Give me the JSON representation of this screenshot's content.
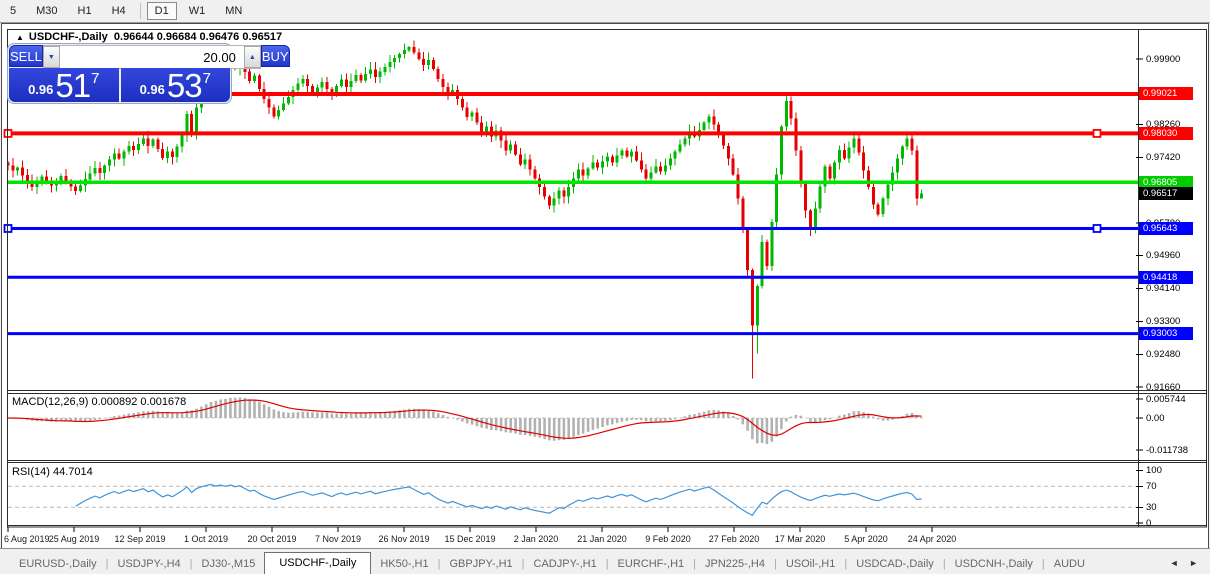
{
  "toolbar": {
    "timeframes": [
      "5",
      "M30",
      "H1",
      "H4",
      "D1",
      "W1",
      "MN"
    ],
    "active_timeframe": "D1"
  },
  "window": {
    "collapse_arrow": "▲",
    "symbol_title": "USDCHF-,Daily",
    "ohlc": "0.96644 0.96684 0.96476 0.96517"
  },
  "trade_panel": {
    "sell_label": "SELL",
    "buy_label": "BUY",
    "volume": "20.00",
    "sell_price_small": "0.96",
    "sell_price_big": "51",
    "sell_price_sup": "7",
    "buy_price_small": "0.96",
    "buy_price_big": "53",
    "buy_price_sup": "7",
    "spin_down": "▼",
    "spin_up": "▲"
  },
  "price_axis": {
    "plain_labels": [
      "0.99900",
      "0.98260",
      "0.97420",
      "0.95780",
      "0.94960",
      "0.94140",
      "0.93300",
      "0.92480",
      "0.91660"
    ],
    "badges": [
      {
        "value": "0.99021",
        "color": "#ff0000"
      },
      {
        "value": "0.98030",
        "color": "#ff0000"
      },
      {
        "value": "0.96805",
        "color": "#00cc00"
      },
      {
        "value": "0.96517",
        "color": "#000000"
      },
      {
        "value": "0.95643",
        "color": "#0000ff"
      },
      {
        "value": "0.94418",
        "color": "#0000ff"
      },
      {
        "value": "0.93003",
        "color": "#0000ff"
      }
    ]
  },
  "macd_panel": {
    "label": "MACD(12,26,9) 0.000892 0.001678",
    "axis": [
      "0.005744",
      "0.00",
      "-0.011738"
    ]
  },
  "rsi_panel": {
    "label": "RSI(14) 44.7014",
    "axis": [
      "100",
      "70",
      "30",
      "0"
    ]
  },
  "tabs": {
    "items": [
      "EURUSD-,Daily",
      "USDJPY-,H4",
      "DJ30-,M15",
      "USDCHF-,Daily",
      "HK50-,H1",
      "GBPJPY-,H1",
      "CADJPY-,H1",
      "EURCHF-,H1",
      "JPN225-,H4",
      "USOil-,H1",
      "USDCAD-,Daily",
      "USDCNH-,Daily",
      "AUDU"
    ],
    "active": "USDCHF-,Daily",
    "scroll_arrows": "◄ ►"
  },
  "chart_data": {
    "type": "candlestick",
    "title": "USDCHF-,Daily",
    "current_ohlc": {
      "open": 0.96644,
      "high": 0.96684,
      "low": 0.96476,
      "close": 0.96517
    },
    "current_price": 0.96517,
    "visible_price_range": [
      0.9166,
      1.003
    ],
    "x_dates": [
      "6 Aug 2019",
      "25 Aug 2019",
      "12 Sep 2019",
      "1 Oct 2019",
      "20 Oct 2019",
      "7 Nov 2019",
      "26 Nov 2019",
      "15 Dec 2019",
      "2 Jan 2020",
      "21 Jan 2020",
      "9 Feb 2020",
      "27 Feb 2020",
      "17 Mar 2020",
      "5 Apr 2020",
      "24 Apr 2020"
    ],
    "closes": [
      0.9722,
      0.971,
      0.9717,
      0.9698,
      0.968,
      0.9668,
      0.9681,
      0.9695,
      0.9684,
      0.9672,
      0.9684,
      0.9696,
      0.9683,
      0.967,
      0.9658,
      0.9672,
      0.9688,
      0.9702,
      0.9716,
      0.9704,
      0.9722,
      0.9738,
      0.9752,
      0.974,
      0.9758,
      0.9772,
      0.9762,
      0.9776,
      0.979,
      0.9772,
      0.9788,
      0.9764,
      0.9742,
      0.9758,
      0.9744,
      0.977,
      0.98,
      0.9852,
      0.9806,
      0.9868,
      0.99,
      0.993,
      0.9952,
      0.9938,
      0.9962,
      0.995,
      0.998,
      0.9965,
      0.9982,
      0.9958,
      0.9935,
      0.9948,
      0.9915,
      0.989,
      0.9868,
      0.9846,
      0.9862,
      0.9878,
      0.9895,
      0.9912,
      0.9928,
      0.994,
      0.9922,
      0.9905,
      0.9918,
      0.9932,
      0.9915,
      0.9898,
      0.9922,
      0.9938,
      0.992,
      0.9935,
      0.995,
      0.9936,
      0.9952,
      0.9964,
      0.9945,
      0.9958,
      0.997,
      0.9982,
      0.9992,
      1.0002,
      1.0012,
      1.002,
      1.0006,
      0.999,
      0.9975,
      0.9988,
      0.9965,
      0.994,
      0.992,
      0.99,
      0.9912,
      0.989,
      0.9868,
      0.9845,
      0.9855,
      0.983,
      0.9808,
      0.982,
      0.9795,
      0.981,
      0.9785,
      0.976,
      0.9775,
      0.975,
      0.9725,
      0.9738,
      0.9712,
      0.969,
      0.9668,
      0.9645,
      0.9622,
      0.964,
      0.966,
      0.9645,
      0.9668,
      0.969,
      0.9712,
      0.9698,
      0.9715,
      0.973,
      0.9718,
      0.9732,
      0.9745,
      0.973,
      0.9748,
      0.976,
      0.9745,
      0.9758,
      0.9735,
      0.9712,
      0.969,
      0.9705,
      0.972,
      0.9708,
      0.9722,
      0.974,
      0.9758,
      0.9775,
      0.979,
      0.9808,
      0.9795,
      0.9812,
      0.983,
      0.9845,
      0.9825,
      0.98,
      0.9772,
      0.974,
      0.97,
      0.964,
      0.956,
      0.946,
      0.932,
      0.942,
      0.953,
      0.947,
      0.958,
      0.97,
      0.982,
      0.9885,
      0.984,
      0.976,
      0.968,
      0.961,
      0.956,
      0.9615,
      0.967,
      0.972,
      0.969,
      0.973,
      0.9762,
      0.974,
      0.9768,
      0.979,
      0.9755,
      0.971,
      0.9668,
      0.9625,
      0.96,
      0.964,
      0.9675,
      0.9705,
      0.974,
      0.977,
      0.979,
      0.976,
      0.964,
      0.96517
    ],
    "wick_overrides": {
      "5": {
        "low": 0.9659
      },
      "14": {
        "low": 0.9648
      },
      "37": {
        "high": 0.986
      },
      "83": {
        "high": 1.0023
      },
      "112": {
        "low": 0.9613
      },
      "145": {
        "high": 0.9852
      },
      "154": {
        "low": 0.9187
      },
      "155": {
        "low": 0.925
      },
      "161": {
        "high": 0.9901
      },
      "166": {
        "low": 0.9545
      },
      "175": {
        "high": 0.9803
      },
      "186": {
        "high": 0.9806
      },
      "189": {
        "low": 0.9648,
        "high": 0.9662
      }
    },
    "horizontal_lines": [
      {
        "price": 0.99021,
        "color": "#ff0000",
        "width": 4,
        "selected": false
      },
      {
        "price": 0.9803,
        "color": "#ff0000",
        "width": 4,
        "selected": true
      },
      {
        "price": 0.96805,
        "color": "#00e400",
        "width": 3.5,
        "selected": false
      },
      {
        "price": 0.95643,
        "color": "#0000ff",
        "width": 3,
        "selected": true
      },
      {
        "price": 0.94418,
        "color": "#0000ff",
        "width": 3,
        "selected": false
      },
      {
        "price": 0.93003,
        "color": "#0000ff",
        "width": 3,
        "selected": false
      }
    ],
    "indicators": {
      "macd": {
        "params": [
          12,
          26,
          9
        ],
        "values": [
          0.000892,
          0.001678
        ],
        "scale": [
          0.005744,
          0.0,
          -0.011738
        ]
      },
      "rsi": {
        "period": 14,
        "value": 44.7014,
        "levels": [
          70,
          30
        ],
        "scale": [
          0,
          100
        ]
      },
      "ma_fast_color": "#cc3333",
      "ma_slow_color": "#2233bb"
    },
    "colors": {
      "up": "#00b800",
      "down": "#e60000",
      "macd_hist": "#b2b2b2",
      "macd_signal": "#dd0000",
      "rsi_line": "#3d95dd"
    }
  }
}
